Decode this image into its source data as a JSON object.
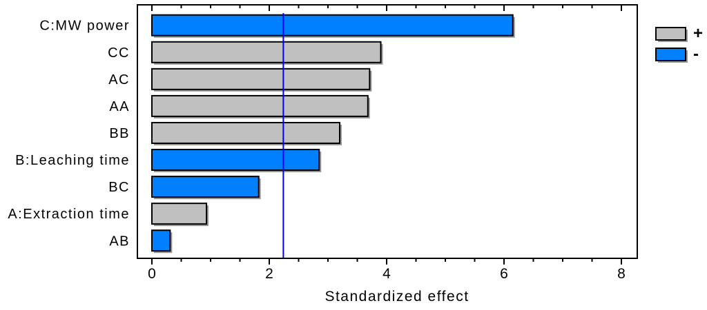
{
  "chart_data": {
    "type": "bar",
    "orientation": "horizontal",
    "title": "",
    "xlabel": "Standardized effect",
    "categories": [
      "C:MW power",
      "CC",
      "AC",
      "AA",
      "BB",
      "B:Leaching time",
      "BC",
      "A:Extraction time",
      "AB"
    ],
    "values": [
      6.15,
      3.9,
      3.71,
      3.68,
      3.2,
      2.85,
      1.82,
      0.93,
      0.31
    ],
    "signs": [
      "-",
      "+",
      "+",
      "+",
      "+",
      "-",
      "-",
      "+",
      "-"
    ],
    "xlim": [
      -0.25,
      8.27
    ],
    "x_ticks": [
      0,
      2,
      4,
      6,
      8
    ],
    "minor_tick_step": 0.5,
    "reference_line": 2.24,
    "grid": "off",
    "legend_position": "top-right",
    "legend": [
      {
        "label": "+",
        "color": "#C0C0C0"
      },
      {
        "label": "-",
        "color": "#0080FF"
      }
    ],
    "colors": {
      "positive": "#C0C0C0",
      "negative": "#0080FF",
      "reference_line": "#0000FF",
      "bar_border": "#000000",
      "shadow": "#999999",
      "axis": "#000000",
      "background": "#FFFFFF"
    }
  }
}
